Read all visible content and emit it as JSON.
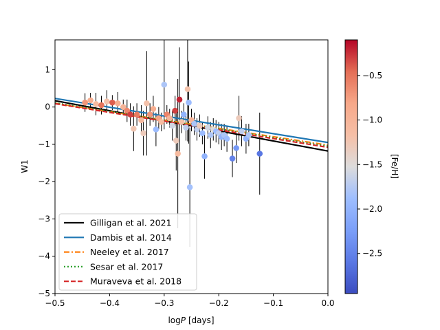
{
  "chart_data": {
    "type": "scatter",
    "title": "",
    "xlabel": "log P [days]",
    "xlabel_main": "log",
    "xlabel_italic": "P",
    "xlabel_unit": " [days]",
    "ylabel": "W1",
    "xlim": [
      -0.5,
      0.0
    ],
    "ylim": [
      -5,
      1.8
    ],
    "xticks": [
      -0.5,
      -0.4,
      -0.3,
      -0.2,
      -0.1,
      0.0
    ],
    "xtick_labels": [
      "−0.5",
      "−0.4",
      "−0.3",
      "−0.2",
      "−0.1",
      "0.0"
    ],
    "yticks": [
      1,
      0,
      -1,
      -2,
      -3,
      -4,
      -5
    ],
    "ytick_labels": [
      "1",
      "0",
      "−1",
      "−2",
      "−3",
      "−4",
      "−5"
    ],
    "colorbar": {
      "label": "[Fe/H]",
      "range": [
        -2.95,
        -0.1
      ],
      "ticks": [
        -0.5,
        -1.0,
        -1.5,
        -2.0,
        -2.5
      ],
      "tick_labels": [
        "−0.5",
        "−1.0",
        "−1.5",
        "−2.0",
        "−2.5"
      ],
      "colormap": "coolwarm"
    },
    "lines": [
      {
        "name": "Gilligan et al. 2021",
        "intercept": -1.18,
        "slope": -2.7,
        "color": "#000000",
        "style": "solid"
      },
      {
        "name": "Dambis et al. 2014",
        "intercept": -0.95,
        "slope": -2.36,
        "color": "#1f77b4",
        "style": "solid"
      },
      {
        "name": "Neeley et al. 2017",
        "intercept": -1.02,
        "slope": -2.24,
        "color": "#ff7f0e",
        "style": "dashdot"
      },
      {
        "name": "Sesar et al. 2017",
        "intercept": -1.05,
        "slope": -2.32,
        "color": "#2ca02c",
        "style": "dotted"
      },
      {
        "name": "Muraveva et al. 2018",
        "intercept": -1.08,
        "slope": -2.34,
        "color": "#d62728",
        "style": "dashed"
      }
    ],
    "points": [
      {
        "x": -0.445,
        "y": 0.12,
        "err": 0.25,
        "feh": -0.7
      },
      {
        "x": -0.435,
        "y": 0.18,
        "err": 0.2,
        "feh": -0.9
      },
      {
        "x": -0.425,
        "y": 0.08,
        "err": 0.3,
        "feh": -1.1
      },
      {
        "x": -0.415,
        "y": 0.05,
        "err": 0.25,
        "feh": -0.5
      },
      {
        "x": -0.405,
        "y": 0.15,
        "err": 0.3,
        "feh": -1.2
      },
      {
        "x": -0.395,
        "y": 0.12,
        "err": 0.2,
        "feh": -0.4
      },
      {
        "x": -0.385,
        "y": 0.1,
        "err": 0.3,
        "feh": -0.9
      },
      {
        "x": -0.375,
        "y": 0.0,
        "err": 0.2,
        "feh": -1.0
      },
      {
        "x": -0.368,
        "y": -0.1,
        "err": 0.3,
        "feh": -0.6
      },
      {
        "x": -0.362,
        "y": -0.2,
        "err": 0.3,
        "feh": -0.3
      },
      {
        "x": -0.356,
        "y": -0.58,
        "err": 0.6,
        "feh": -1.25
      },
      {
        "x": -0.35,
        "y": -0.2,
        "err": 0.3,
        "feh": -0.55
      },
      {
        "x": -0.342,
        "y": -0.35,
        "err": 0.4,
        "feh": -1.05
      },
      {
        "x": -0.338,
        "y": -0.7,
        "err": 0.6,
        "feh": -1.3
      },
      {
        "x": -0.332,
        "y": 0.1,
        "err": 1.4,
        "feh": -1.2
      },
      {
        "x": -0.326,
        "y": -0.2,
        "err": 0.3,
        "feh": -0.7
      },
      {
        "x": -0.32,
        "y": -0.05,
        "err": 0.35,
        "feh": -0.9
      },
      {
        "x": -0.315,
        "y": -0.6,
        "err": 0.45,
        "feh": -1.9
      },
      {
        "x": -0.31,
        "y": -0.3,
        "err": 0.3,
        "feh": -0.8
      },
      {
        "x": -0.305,
        "y": -0.4,
        "err": 0.25,
        "feh": -1.1
      },
      {
        "x": -0.3,
        "y": 0.6,
        "err": 1.2,
        "feh": -1.8
      },
      {
        "x": -0.295,
        "y": -0.2,
        "err": 0.25,
        "feh": -0.6
      },
      {
        "x": -0.29,
        "y": -0.3,
        "err": 0.25,
        "feh": -1.0
      },
      {
        "x": -0.285,
        "y": -0.5,
        "err": 0.4,
        "feh": -1.6
      },
      {
        "x": -0.28,
        "y": -0.1,
        "err": 0.4,
        "feh": -0.3
      },
      {
        "x": -0.278,
        "y": -0.9,
        "err": 0.8,
        "feh": -1.3
      },
      {
        "x": -0.275,
        "y": -1.25,
        "err": 2.0,
        "feh": -1.1
      },
      {
        "x": -0.272,
        "y": 0.2,
        "err": 1.4,
        "feh": -0.2
      },
      {
        "x": -0.268,
        "y": -0.4,
        "err": 0.3,
        "feh": -1.2
      },
      {
        "x": -0.264,
        "y": -0.2,
        "err": 0.3,
        "feh": -2.0
      },
      {
        "x": -0.26,
        "y": -0.55,
        "err": 0.35,
        "feh": -1.7
      },
      {
        "x": -0.257,
        "y": 0.48,
        "err": 1.4,
        "feh": -1.2
      },
      {
        "x": -0.255,
        "y": 0.12,
        "err": 1.1,
        "feh": -1.9
      },
      {
        "x": -0.253,
        "y": -2.15,
        "err": 1.6,
        "feh": -1.85
      },
      {
        "x": -0.25,
        "y": -0.35,
        "err": 0.3,
        "feh": -1.0
      },
      {
        "x": -0.245,
        "y": -0.45,
        "err": 0.3,
        "feh": -1.8
      },
      {
        "x": -0.24,
        "y": -0.6,
        "err": 0.3,
        "feh": -1.7
      },
      {
        "x": -0.235,
        "y": -0.5,
        "err": 0.3,
        "feh": -1.3
      },
      {
        "x": -0.23,
        "y": -0.7,
        "err": 0.3,
        "feh": -1.9
      },
      {
        "x": -0.226,
        "y": -1.32,
        "err": 0.6,
        "feh": -2.0
      },
      {
        "x": -0.22,
        "y": -0.55,
        "err": 0.3,
        "feh": -1.6
      },
      {
        "x": -0.215,
        "y": -0.75,
        "err": 0.35,
        "feh": -1.8
      },
      {
        "x": -0.21,
        "y": -0.6,
        "err": 0.3,
        "feh": -1.5
      },
      {
        "x": -0.205,
        "y": -0.65,
        "err": 0.3,
        "feh": -1.9
      },
      {
        "x": -0.2,
        "y": -0.7,
        "err": 0.3,
        "feh": -1.7
      },
      {
        "x": -0.195,
        "y": -0.8,
        "err": 0.35,
        "feh": -2.0
      },
      {
        "x": -0.19,
        "y": -0.75,
        "err": 0.3,
        "feh": -1.8
      },
      {
        "x": -0.185,
        "y": -0.85,
        "err": 0.35,
        "feh": -1.9
      },
      {
        "x": -0.175,
        "y": -1.38,
        "err": 0.5,
        "feh": -2.5
      },
      {
        "x": -0.168,
        "y": -1.1,
        "err": 0.4,
        "feh": -2.3
      },
      {
        "x": -0.163,
        "y": -0.3,
        "err": 0.6,
        "feh": -1.3
      },
      {
        "x": -0.158,
        "y": -0.65,
        "err": 0.4,
        "feh": -1.7
      },
      {
        "x": -0.15,
        "y": -0.85,
        "err": 0.4,
        "feh": -2.0
      },
      {
        "x": -0.145,
        "y": -0.75,
        "err": 0.3,
        "feh": -1.8
      },
      {
        "x": -0.125,
        "y": -1.25,
        "err": 1.1,
        "feh": -2.6
      }
    ]
  },
  "colors": {
    "axis": "#000000",
    "errorbar": "#000000",
    "background": "#ffffff"
  }
}
